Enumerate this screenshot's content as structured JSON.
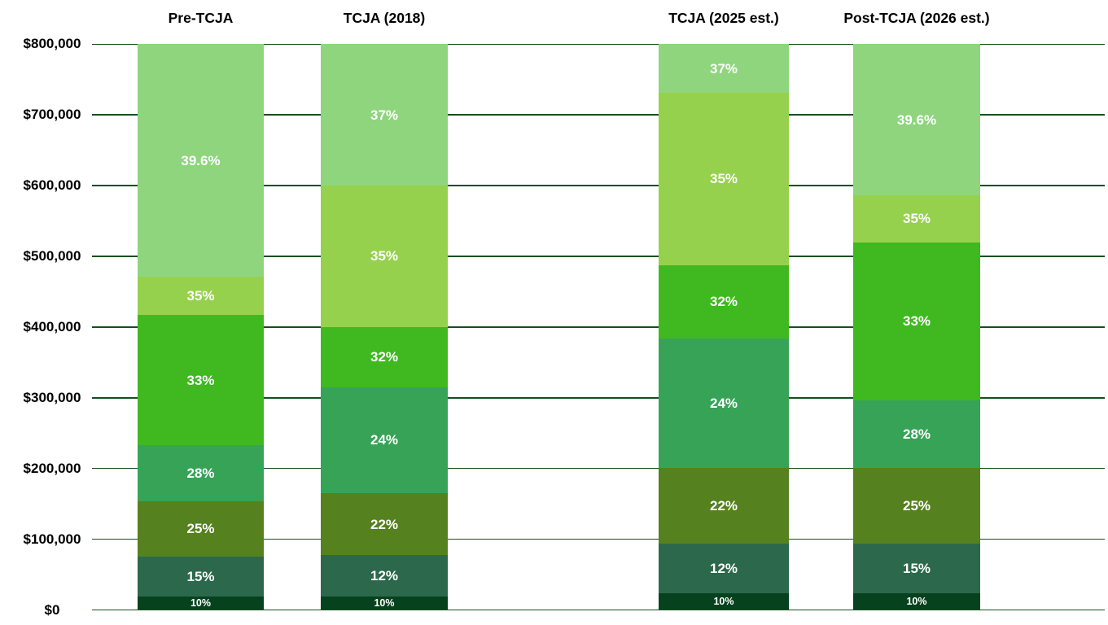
{
  "chart_data": {
    "type": "bar",
    "variant": "stacked-columns-tax-brackets",
    "title": "",
    "xlabel": "",
    "ylabel": "",
    "legend": "none",
    "grid": true,
    "y_axis": {
      "min": 0,
      "max": 800000,
      "tick_interval": 100000,
      "tick_labels": [
        "$0",
        "$100,000",
        "$200,000",
        "$300,000",
        "$400,000",
        "$500,000",
        "$600,000",
        "$700,000",
        "$800,000"
      ]
    },
    "columns": [
      {
        "label": "Pre-TCJA",
        "segments": [
          {
            "rate": "10%",
            "from": 0,
            "to": 18650
          },
          {
            "rate": "15%",
            "from": 18650,
            "to": 75900
          },
          {
            "rate": "25%",
            "from": 75900,
            "to": 153100
          },
          {
            "rate": "28%",
            "from": 153100,
            "to": 233350
          },
          {
            "rate": "33%",
            "from": 233350,
            "to": 416700
          },
          {
            "rate": "35%",
            "from": 416700,
            "to": 470700
          },
          {
            "rate": "39.6%",
            "from": 470700,
            "to": 800000
          }
        ]
      },
      {
        "label": "TCJA (2018)",
        "segments": [
          {
            "rate": "10%",
            "from": 0,
            "to": 19050
          },
          {
            "rate": "12%",
            "from": 19050,
            "to": 77400
          },
          {
            "rate": "22%",
            "from": 77400,
            "to": 165000
          },
          {
            "rate": "24%",
            "from": 165000,
            "to": 315000
          },
          {
            "rate": "32%",
            "from": 315000,
            "to": 400000
          },
          {
            "rate": "35%",
            "from": 400000,
            "to": 600000
          },
          {
            "rate": "37%",
            "from": 600000,
            "to": 800000
          }
        ]
      },
      {
        "label": "TCJA (2025 est.)",
        "segments": [
          {
            "rate": "10%",
            "from": 0,
            "to": 23200
          },
          {
            "rate": "12%",
            "from": 23200,
            "to": 94300
          },
          {
            "rate": "22%",
            "from": 94300,
            "to": 201050
          },
          {
            "rate": "24%",
            "from": 201050,
            "to": 383900
          },
          {
            "rate": "32%",
            "from": 383900,
            "to": 487450
          },
          {
            "rate": "35%",
            "from": 487450,
            "to": 731200
          },
          {
            "rate": "37%",
            "from": 731200,
            "to": 800000
          }
        ]
      },
      {
        "label": "Post-TCJA (2026 est.)",
        "segments": [
          {
            "rate": "10%",
            "from": 0,
            "to": 24000
          },
          {
            "rate": "15%",
            "from": 24000,
            "to": 94300
          },
          {
            "rate": "25%",
            "from": 94300,
            "to": 200500
          },
          {
            "rate": "28%",
            "from": 200500,
            "to": 296500
          },
          {
            "rate": "33%",
            "from": 296500,
            "to": 520000
          },
          {
            "rate": "35%",
            "from": 520000,
            "to": 586500
          },
          {
            "rate": "39.6%",
            "from": 586500,
            "to": 800000
          }
        ]
      }
    ],
    "rate_colors": {
      "10%": "#06421e",
      "12%": "#2c684b",
      "15%": "#2c684b",
      "22%": "#55811e",
      "25%": "#55811e",
      "24%": "#37a357",
      "28%": "#37a357",
      "32%": "#3fb91f",
      "33%": "#3fb91f",
      "35%": "#96d14e",
      "37%": "#8ed57e",
      "39.6%": "#8ed57e"
    },
    "gridline_color": "#14501f",
    "axis_label_color": "#000000",
    "segment_text_color": "#ffffff",
    "background_color": "#ffffff"
  }
}
